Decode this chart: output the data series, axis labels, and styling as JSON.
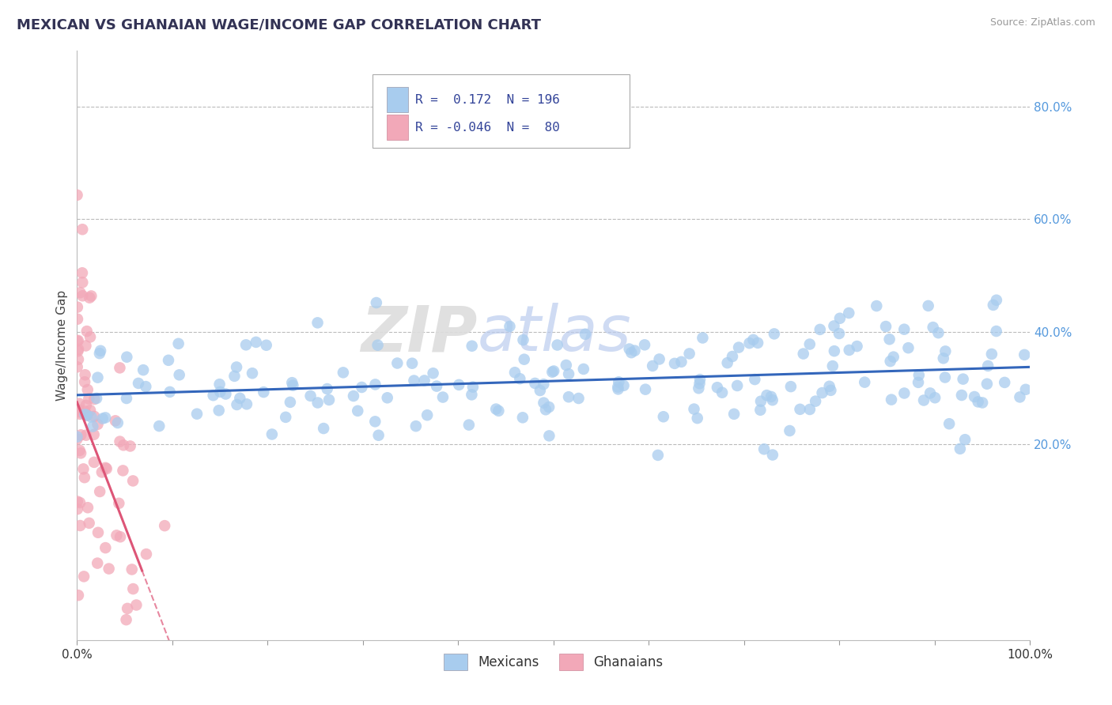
{
  "title": "MEXICAN VS GHANAIAN WAGE/INCOME GAP CORRELATION CHART",
  "source": "Source: ZipAtlas.com",
  "ylabel": "Wage/Income Gap",
  "xlim": [
    0.0,
    1.0
  ],
  "ylim": [
    -0.15,
    0.9
  ],
  "hgrid_values": [
    0.2,
    0.4,
    0.6,
    0.8
  ],
  "ytick_vals": [
    0.2,
    0.4,
    0.6,
    0.8
  ],
  "ytick_labels": [
    "20.0%",
    "40.0%",
    "60.0%",
    "80.0%"
  ],
  "blue_R": 0.172,
  "blue_N": 196,
  "pink_R": -0.046,
  "pink_N": 80,
  "blue_color": "#A8CCEE",
  "pink_color": "#F2A8B8",
  "blue_line_color": "#3366BB",
  "pink_line_color": "#DD5577",
  "watermark_zip": "ZIP",
  "watermark_atlas": "atlas",
  "legend_labels": [
    "Mexicans",
    "Ghanaians"
  ],
  "background_color": "#FFFFFF",
  "seed": 12345
}
